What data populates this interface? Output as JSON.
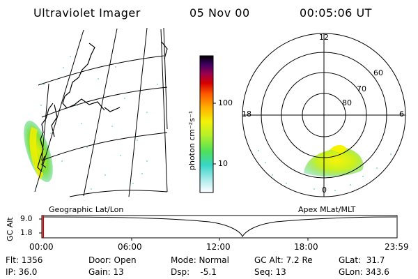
{
  "header": {
    "instrument": "Ultraviolet Imager",
    "date": "05 Nov 00",
    "time": "00:05:06 UT"
  },
  "colorbar": {
    "unit_label": "photon cm⁻²s⁻¹",
    "ticks": [
      "100",
      "10"
    ]
  },
  "polar": {
    "mlt_labels": [
      "12",
      "18",
      "6",
      "0"
    ],
    "lat_labels": [
      "60",
      "70",
      "80"
    ]
  },
  "panels": {
    "left_label": "Geographic Lat/Lon",
    "right_label": "Apex MLat/MLT"
  },
  "altitude_plot": {
    "axis_label": "GC Alt",
    "y_ticks": [
      "9.0",
      "1.8"
    ],
    "x_ticks": [
      "00:00",
      "06:00",
      "12:00",
      "18:00",
      "23:59"
    ]
  },
  "info": {
    "flt": "Flt: 1356",
    "ip": "IP: 36.0",
    "door": "Door: Open",
    "gain": "Gain: 13",
    "mode": "Mode: Normal",
    "dsp": "Dsp:    -5.1",
    "gc_alt": "GC Alt: 7.2 Re",
    "seq": "Seq: 13",
    "glat": "GLat:  31.7",
    "glon": "GLon: 343.6"
  }
}
